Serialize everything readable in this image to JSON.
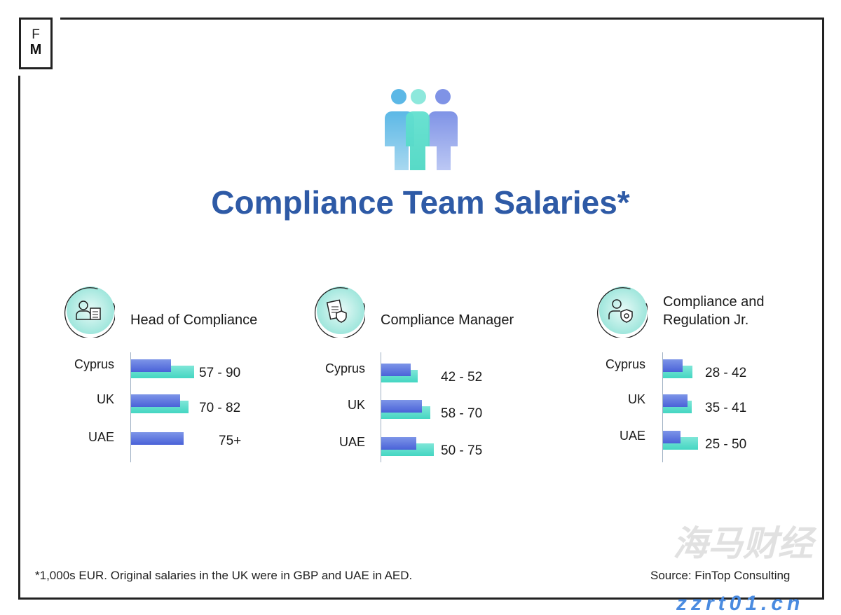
{
  "logo": {
    "line1": "F",
    "line2": "M"
  },
  "title": "Compliance Team Salaries*",
  "colors": {
    "title": "#2e5aa6",
    "min_bar": "#5a72dd",
    "max_bar": "#55dcc8"
  },
  "chart_data": [
    {
      "type": "bar",
      "title": "Head of Compliance",
      "icon": "manager-checklist-icon",
      "categories": [
        "Cyprus",
        "UK",
        "UAE"
      ],
      "series": [
        {
          "values": [
            57,
            70,
            75
          ]
        },
        {
          "values": [
            90,
            82,
            null
          ]
        }
      ],
      "labels": [
        "57 - 90",
        "70 - 82",
        "75+"
      ]
    },
    {
      "type": "bar",
      "title": "Compliance Manager",
      "icon": "document-shield-icon",
      "categories": [
        "Cyprus",
        "UK",
        "UAE"
      ],
      "series": [
        {
          "values": [
            42,
            58,
            50
          ]
        },
        {
          "values": [
            52,
            70,
            75
          ]
        }
      ],
      "labels": [
        "42 - 52",
        "58 - 70",
        "50 - 75"
      ]
    },
    {
      "type": "bar",
      "title": "Compliance and Regulation Jr.",
      "title_lines": [
        "Compliance and",
        "Regulation Jr."
      ],
      "icon": "person-shield-gear-icon",
      "categories": [
        "Cyprus",
        "UK",
        "UAE"
      ],
      "series": [
        {
          "values": [
            28,
            35,
            25
          ]
        },
        {
          "values": [
            42,
            41,
            50
          ]
        }
      ],
      "labels": [
        "28 - 42",
        "35 - 41",
        "25 - 50"
      ]
    }
  ],
  "footnote": "*1,000s EUR. Original salaries in the UK were in GBP and UAE in AED.",
  "source": "Source: FinTop Consulting",
  "watermark": {
    "line1": "海马财经",
    "line2": "zzrt01.cn"
  }
}
